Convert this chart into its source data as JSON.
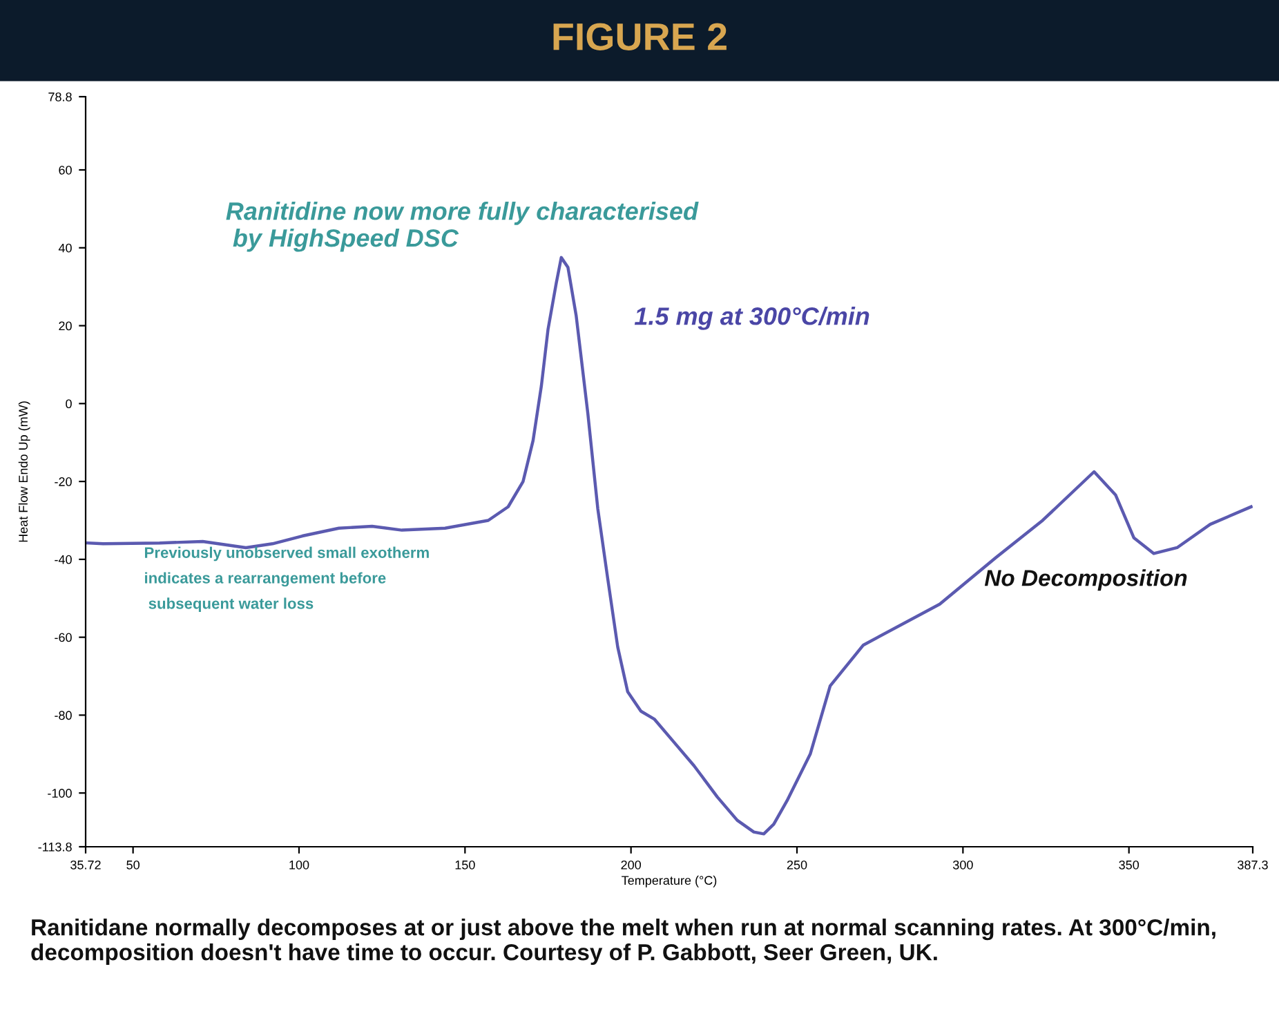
{
  "chart_data": {
    "type": "line",
    "title": "FIGURE 2",
    "xlabel": "Temperature (°C)",
    "ylabel": "Heat Flow Endo Up (mW)",
    "annotations": [
      "Ranitidine now more fully characterised\n by HighSpeed DSC",
      "1.5 mg at 300°C/min",
      "Previously unobserved small exotherm\nindicates a rearrangement before\n subsequent water loss",
      "No Decomposition",
      "Ranitidane normally decomposes at or just above the melt when run at normal scanning rates. At 300°C/min, decomposition doesn't have time to occur. Courtesy of P. Gabbott, Seer Green, UK."
    ],
    "x": [
      36.4,
      41,
      58,
      71,
      84,
      92,
      101,
      112,
      122,
      131,
      144,
      157,
      163,
      167.5,
      170.5,
      173,
      175,
      177.5,
      179,
      181,
      183.5,
      187,
      190,
      193,
      196,
      199,
      203,
      207,
      213,
      219,
      226,
      232,
      237,
      240,
      243,
      247,
      254,
      260,
      270,
      293,
      310,
      324,
      339.5,
      346,
      351.5,
      357.5,
      364.5,
      374.5,
      386.8
    ],
    "series": [
      {
        "color": "#5b5ab0",
        "values": [
          -35.8,
          -36,
          -35.8,
          -35.4,
          -37,
          -36,
          -34,
          -32,
          -31.5,
          -32.5,
          -32,
          -30,
          -26.5,
          -20,
          -9.5,
          4.5,
          19,
          31,
          37.5,
          35,
          22.5,
          -2.5,
          -27,
          -45,
          -62.5,
          -74,
          -79,
          -81,
          -87,
          -93,
          -101,
          -107,
          -110,
          -110.5,
          -108,
          -102,
          -90,
          -72.5,
          -62,
          -51.5,
          -39.5,
          -30,
          -17.5,
          -23.5,
          -34.5,
          -38.5,
          -37,
          -31,
          -26.5
        ]
      }
    ],
    "xlim": [
      35.72,
      387.3
    ],
    "ylim": [
      -113.8,
      78.8
    ],
    "xticks": [
      35.72,
      50,
      100,
      150,
      200,
      250,
      300,
      350,
      387.3
    ],
    "yticks": [
      78.8,
      60,
      40,
      20,
      0,
      -20,
      -40,
      -60,
      -80,
      -100,
      -113.8
    ],
    "grid": false,
    "marker": "none",
    "line_style": "solid"
  }
}
